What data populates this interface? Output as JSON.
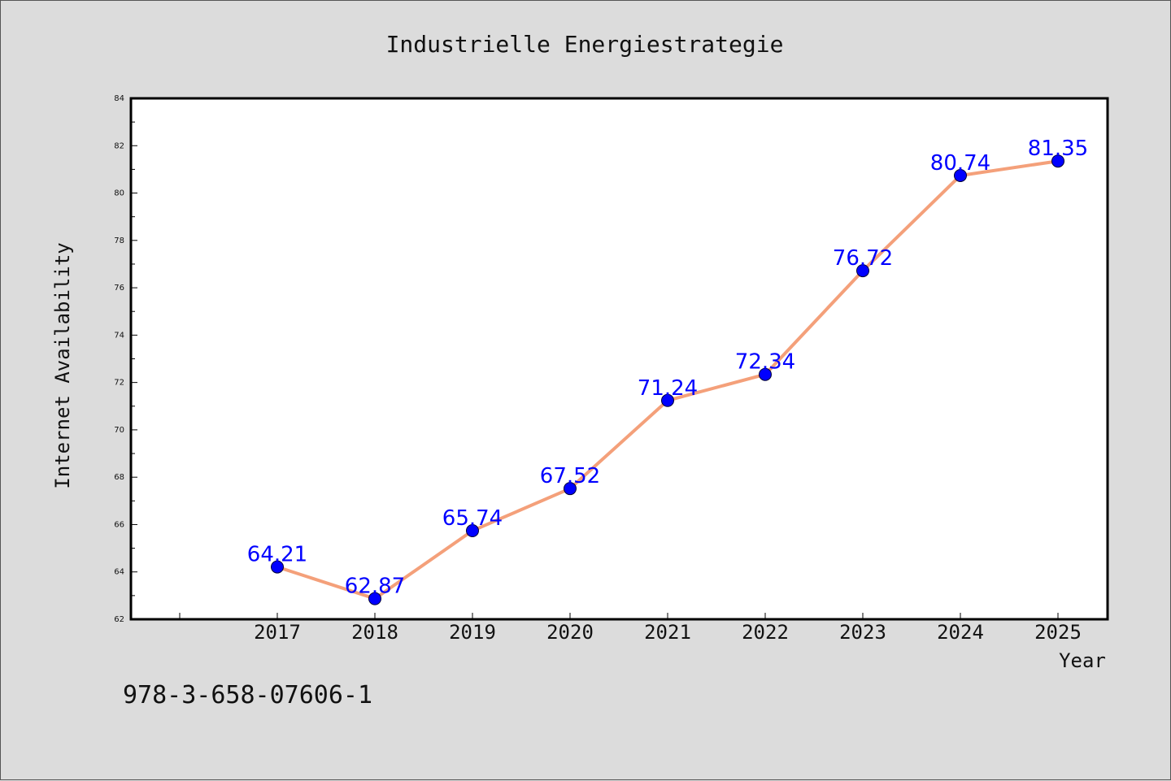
{
  "chart_data": {
    "type": "line",
    "title": "Industrielle Energiestrategie",
    "xlabel": "Year",
    "ylabel": "Internet Availability",
    "categories": [
      "2017",
      "2018",
      "2019",
      "2020",
      "2021",
      "2022",
      "2023",
      "2024",
      "2025"
    ],
    "series": [
      {
        "values": [
          64.21,
          62.87,
          65.74,
          67.52,
          71.24,
          72.34,
          76.72,
          80.74,
          81.35
        ],
        "labels": [
          "64.21",
          "62.87",
          "65.74",
          "67.52",
          "71.24",
          "72.34",
          "76.72",
          "80.74",
          "81.35"
        ],
        "line_color": "#f4a07a",
        "marker_color": "#0000ff",
        "label_color": "#0000ff"
      }
    ],
    "ylim": [
      62,
      84
    ],
    "yticks": [
      "62",
      "64",
      "66",
      "68",
      "70",
      "72",
      "74",
      "76",
      "78",
      "80",
      "82",
      "84"
    ],
    "grid": false,
    "legend": "none"
  },
  "footer": {
    "isbn": "978-3-658-07606-1"
  }
}
